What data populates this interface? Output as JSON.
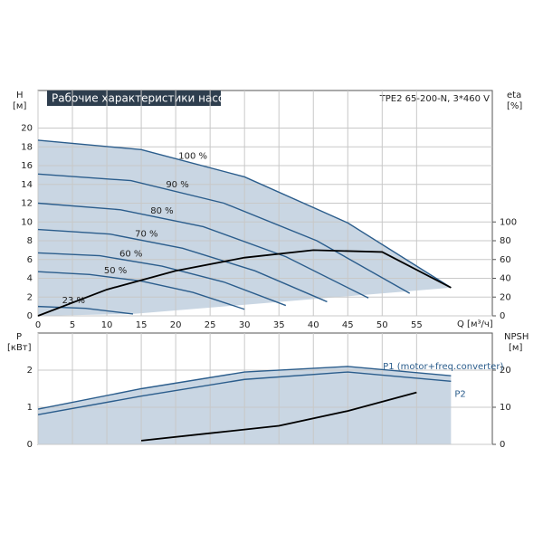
{
  "header": {
    "title": "Рабочие характеристики насоса",
    "model": "TPE2 65-200-N, 3*460 V"
  },
  "chart_data": [
    {
      "type": "line",
      "x_label": "Q [м³/ч]",
      "y_label": "H",
      "y_unit": "[м]",
      "y2_label": "eta",
      "y2_unit": "[%]",
      "xlim": [
        0,
        66
      ],
      "xticks": [
        0,
        5,
        10,
        15,
        20,
        25,
        30,
        35,
        40,
        45,
        50,
        55
      ],
      "ylim": [
        0,
        24
      ],
      "yticks": [
        0,
        2,
        4,
        6,
        8,
        10,
        12,
        14,
        16,
        18,
        20
      ],
      "y2lim": [
        0,
        240
      ],
      "y2ticks": [
        0,
        20,
        40,
        60,
        80,
        100
      ],
      "grid": true,
      "series": [
        {
          "name": "100 %",
          "color": "#2b5d8c",
          "x": [
            0,
            15,
            30,
            45,
            60
          ],
          "values": [
            18.7,
            17.7,
            14.8,
            9.9,
            3.0
          ]
        },
        {
          "name": "90 %",
          "color": "#2b5d8c",
          "x": [
            0,
            13.5,
            27,
            40.5,
            54
          ],
          "values": [
            15.1,
            14.4,
            12.0,
            8.0,
            2.4
          ]
        },
        {
          "name": "80 %",
          "color": "#2b5d8c",
          "x": [
            0,
            12,
            24,
            36,
            48
          ],
          "values": [
            12.0,
            11.3,
            9.5,
            6.3,
            1.9
          ]
        },
        {
          "name": "70 %",
          "color": "#2b5d8c",
          "x": [
            0,
            10.5,
            21,
            31.5,
            42
          ],
          "values": [
            9.2,
            8.7,
            7.2,
            4.8,
            1.5
          ]
        },
        {
          "name": "60 %",
          "color": "#2b5d8c",
          "x": [
            0,
            9,
            18,
            27,
            36
          ],
          "values": [
            6.7,
            6.4,
            5.3,
            3.6,
            1.1
          ]
        },
        {
          "name": "50 %",
          "color": "#2b5d8c",
          "x": [
            0,
            7.5,
            15,
            22.5,
            30
          ],
          "values": [
            4.7,
            4.4,
            3.7,
            2.5,
            0.7
          ]
        },
        {
          "name": "23 %",
          "color": "#2b5d8c",
          "x": [
            0,
            3.45,
            6.9,
            10.35,
            13.8
          ],
          "values": [
            1.0,
            0.9,
            0.8,
            0.5,
            0.2
          ]
        },
        {
          "color": "#000000",
          "axis": "y2",
          "x": [
            0,
            10,
            20,
            30,
            40,
            50,
            60
          ],
          "values": [
            0,
            28,
            48,
            62,
            70,
            68,
            30
          ]
        }
      ]
    },
    {
      "type": "line",
      "y_label": "P",
      "y_unit": "[кВт]",
      "y2_label": "NPSH",
      "y2_unit": "[м]",
      "xlim": [
        0,
        66
      ],
      "ylim": [
        0,
        3
      ],
      "yticks": [
        0,
        1,
        2
      ],
      "y2lim": [
        0,
        30
      ],
      "y2ticks": [
        0,
        10,
        20
      ],
      "grid": true,
      "series": [
        {
          "name": "P1 (motor+freq.converter)",
          "color": "#2b5d8c",
          "x": [
            0,
            15,
            30,
            45,
            60
          ],
          "values": [
            0.95,
            1.5,
            1.95,
            2.1,
            1.85
          ]
        },
        {
          "name": "P2",
          "color": "#2b5d8c",
          "x": [
            0,
            15,
            30,
            45,
            60
          ],
          "values": [
            0.8,
            1.3,
            1.75,
            1.95,
            1.7
          ]
        },
        {
          "color": "#000000",
          "axis": "y2",
          "x": [
            15,
            25,
            35,
            45,
            55
          ],
          "values": [
            1,
            3,
            5,
            9,
            14
          ]
        }
      ]
    }
  ]
}
